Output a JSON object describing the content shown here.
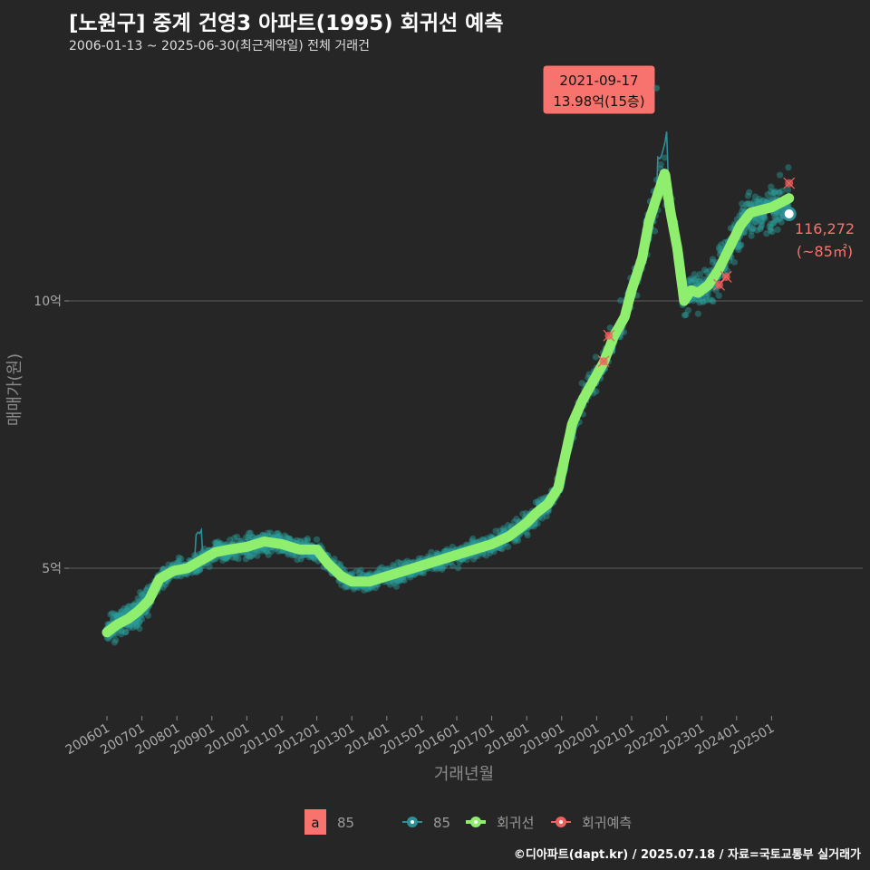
{
  "header": {
    "title": "[노원구] 중계 건영3 아파트(1995) 회귀선 예측",
    "subtitle": "2006-01-13 ~ 2025-06-30(최근계약일) 전체 거래건"
  },
  "footer": {
    "credit": "©디아파트(dapt.kr) / 2025.07.18 / 자료=국토교통부 실거래가"
  },
  "colors": {
    "background": "#262626",
    "points": "#2a9d9a",
    "trend": "#2e8f99",
    "regression": "#90ee6e",
    "forecast": "#f0605d",
    "annotation": "#f8736d"
  },
  "chart_data": {
    "type": "line",
    "xlabel": "거래년월",
    "ylabel": "매매가(원)",
    "x_tick_labels": [
      "200601",
      "200701",
      "200801",
      "200901",
      "201001",
      "201101",
      "201201",
      "201301",
      "201401",
      "201501",
      "201601",
      "201701",
      "201801",
      "201901",
      "202001",
      "202101",
      "202201",
      "202301",
      "202401",
      "202501"
    ],
    "y_tick_labels": [
      {
        "label": "5억",
        "value": 50000
      },
      {
        "label": "10억",
        "value": 100000
      }
    ],
    "ylim": [
      22000,
      129000
    ],
    "xlim": [
      2005.5,
      2026.0
    ],
    "series": [
      {
        "name": "85",
        "kind": "scatter-trend"
      },
      {
        "name": "회귀선",
        "kind": "regression",
        "x": [
          2006.0,
          2006.3,
          2006.6,
          2006.9,
          2007.2,
          2007.5,
          2007.9,
          2008.3,
          2008.7,
          2009.1,
          2009.5,
          2010.0,
          2010.5,
          2011.0,
          2011.5,
          2012.0,
          2012.3,
          2012.7,
          2013.0,
          2013.5,
          2014.0,
          2014.5,
          2015.0,
          2015.5,
          2016.0,
          2016.5,
          2017.0,
          2017.5,
          2018.0,
          2018.3,
          2018.6,
          2018.9,
          2019.1,
          2019.3,
          2019.6,
          2019.9,
          2020.2,
          2020.5,
          2020.8,
          2021.0,
          2021.3,
          2021.5,
          2021.8,
          2021.95,
          2022.1,
          2022.3,
          2022.5,
          2022.7,
          2022.9,
          2023.2,
          2023.5,
          2023.8,
          2024.1,
          2024.4,
          2024.7,
          2025.0,
          2025.3,
          2025.5
        ],
        "y": [
          38000,
          39500,
          40500,
          42000,
          44000,
          48000,
          49500,
          50000,
          51500,
          53000,
          53500,
          54000,
          55000,
          54500,
          53500,
          53500,
          51000,
          48500,
          47500,
          47500,
          48500,
          49500,
          50500,
          51500,
          52500,
          53500,
          54500,
          56000,
          58500,
          60500,
          62000,
          65000,
          71000,
          77000,
          81500,
          85000,
          88500,
          93500,
          97000,
          102000,
          108000,
          115000,
          121000,
          124000,
          117000,
          110000,
          100000,
          102000,
          101500,
          103000,
          106000,
          110000,
          114000,
          116500,
          117000,
          117500,
          118500,
          119200
        ]
      },
      {
        "name": "회귀예측",
        "kind": "forecast",
        "x": [
          2020.2,
          2020.35,
          2023.5,
          2023.7,
          2025.5
        ],
        "y": [
          88700,
          93500,
          103000,
          104500,
          122000
        ]
      }
    ],
    "annotations": [
      {
        "date": "2021-09-17",
        "price": "13.98억(15층)",
        "x": 2021.71,
        "y": 139800
      },
      {
        "value": "116,272",
        "area": "(~85㎡)",
        "x": 2025.5,
        "y": 116272
      }
    ],
    "legend": {
      "position": "bottom",
      "size_key": {
        "glyph": "a",
        "label": "85"
      },
      "items": [
        {
          "label": "85",
          "color": "#2e8f99"
        },
        {
          "label": "회귀선",
          "color": "#90ee6e"
        },
        {
          "label": "회귀예측",
          "color": "#f0605d"
        }
      ]
    }
  }
}
